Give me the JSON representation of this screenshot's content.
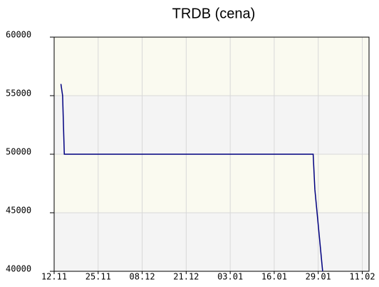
{
  "chart_data": {
    "type": "line",
    "title": "TRDB (cena)",
    "x": [
      2,
      2.5,
      3,
      76.5,
      77,
      79.3
    ],
    "series": [
      {
        "name": "cena",
        "color": "#000080",
        "values": [
          56000,
          55000,
          50000,
          50000,
          47000,
          40000
        ]
      }
    ],
    "xlim": [
      0,
      93
    ],
    "xticks": [
      {
        "value": 0,
        "label": "12.11"
      },
      {
        "value": 13,
        "label": "25.11"
      },
      {
        "value": 26,
        "label": "08.12"
      },
      {
        "value": 39,
        "label": "21.12"
      },
      {
        "value": 52,
        "label": "03.01"
      },
      {
        "value": 65,
        "label": "16.01"
      },
      {
        "value": 78,
        "label": "29.01"
      },
      {
        "value": 91,
        "label": "11.02"
      }
    ],
    "ylim": [
      40000,
      60000
    ],
    "yticks": [
      40000,
      45000,
      50000,
      55000,
      60000
    ],
    "grid": true,
    "band_colors": [
      "#f4f4f4",
      "#fafaf0"
    ]
  }
}
